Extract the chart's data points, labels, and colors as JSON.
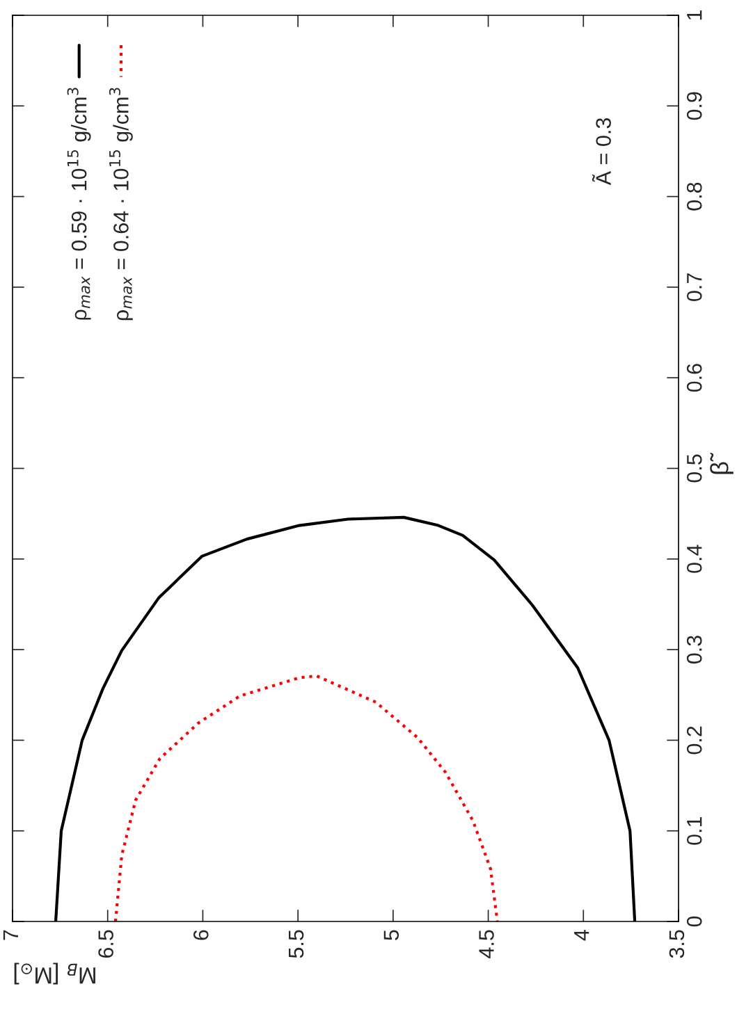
{
  "chart_data": {
    "type": "line",
    "xlabel": "M$_{B}$ [M$_{⊙}$]",
    "ylabel": "β̃",
    "xlim": [
      7,
      3.5
    ],
    "xticks": [
      3.5,
      4,
      4.5,
      5,
      5.5,
      6,
      6.5,
      7
    ],
    "ylim": [
      0,
      1
    ],
    "yticks": [
      0,
      0.1,
      0.2,
      0.3,
      0.4,
      0.5,
      0.6,
      0.7,
      0.8,
      0.9,
      1
    ],
    "grid": false,
    "legend": "top left",
    "marker": "none",
    "annotations": [
      "Ã = 0.3"
    ],
    "series": [
      {
        "name": "ρ$_{max}$ = 0.59 · 10$^{15}$ g/cm$^{3}$",
        "color": "#000000",
        "line_style": "solid",
        "x": [
          6.773,
          6.744,
          6.634,
          6.525,
          6.426,
          6.232,
          6.005,
          5.768,
          5.493,
          5.237,
          4.944,
          4.762,
          4.634,
          4.469,
          4.268,
          4.03,
          3.865,
          3.755,
          3.73
        ],
        "values": [
          0,
          0.1,
          0.2,
          0.257,
          0.299,
          0.357,
          0.403,
          0.422,
          0.437,
          0.444,
          0.446,
          0.437,
          0.426,
          0.399,
          0.349,
          0.28,
          0.2,
          0.1,
          0
        ]
      },
      {
        "name": "ρ$_{max}$ = 0.64 · 10$^{15}$ g/cm$^{3}$",
        "color": "#ff0000",
        "line_style": "dotted",
        "x": [
          6.459,
          6.426,
          6.353,
          6.225,
          6.023,
          5.804,
          5.493,
          5.402,
          5.091,
          4.872,
          4.726,
          4.58,
          4.488,
          4.452
        ],
        "values": [
          0,
          0.073,
          0.134,
          0.18,
          0.219,
          0.249,
          0.269,
          0.271,
          0.242,
          0.203,
          0.165,
          0.111,
          0.058,
          0
        ]
      }
    ]
  }
}
